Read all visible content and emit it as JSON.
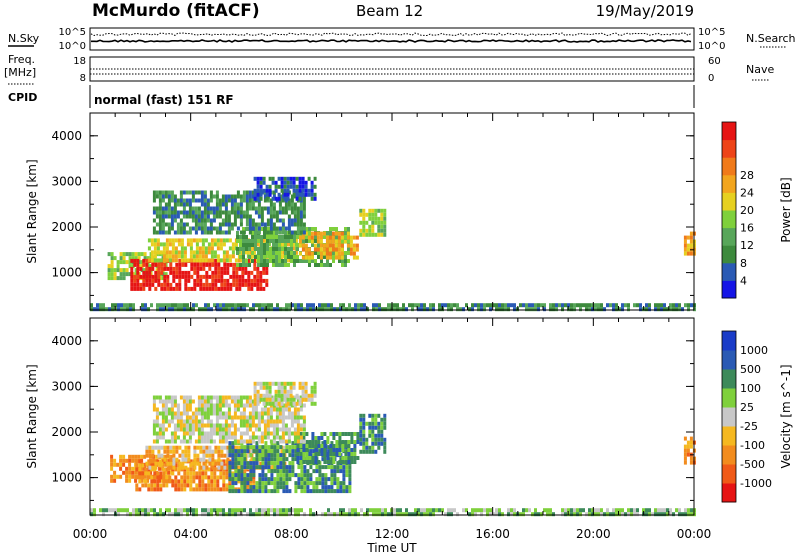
{
  "header": {
    "station": "McMurdo (fitACF)",
    "beam": "Beam 12",
    "date": "19/May/2019"
  },
  "status_panels": {
    "nsky_label": "N.Sky",
    "nsearch_label": "N.Search",
    "freq_label_1": "Freq.",
    "freq_label_2": "[MHz]",
    "nave_label": "Nave",
    "cpid_label": "CPID",
    "cpid_text": "normal (fast) 151 RF",
    "noise_ticks_left": [
      "10^5",
      "10^0"
    ],
    "noise_ticks_right": [
      "10^5",
      "10^0"
    ],
    "freq_ticks": [
      "18",
      "8"
    ],
    "nave_ticks": [
      "60",
      "0"
    ]
  },
  "chart_data": [
    {
      "type": "heatmap",
      "quantity": "power",
      "ylabel": "Slant Range [km]",
      "y_ticks": [
        "1000",
        "2000",
        "3000",
        "4000"
      ],
      "ylim": [
        180,
        4500
      ],
      "xlim": [
        0,
        24
      ],
      "colorbar_label": "Power [dB]",
      "colorbar_ticks": [
        "4",
        "8",
        "12",
        "16",
        "20",
        "24",
        "28"
      ],
      "colorbar_colors": [
        "#1515e6",
        "#2a5ab4",
        "#3d8a3d",
        "#58a65a",
        "#7fd03c",
        "#e6d020",
        "#f2a51e",
        "#f07a1a",
        "#ee4418",
        "#e61414"
      ],
      "regions": [
        {
          "x0": 0.7,
          "x1": 3.0,
          "y0": 900,
          "y1": 1450,
          "level": 4
        },
        {
          "x0": 1.6,
          "x1": 7.0,
          "y0": 600,
          "y1": 1300,
          "level": 9
        },
        {
          "x0": 2.3,
          "x1": 8.2,
          "y0": 1250,
          "y1": 1750,
          "level": 5
        },
        {
          "x0": 5.8,
          "x1": 10.3,
          "y0": 1200,
          "y1": 2000,
          "level": 3
        },
        {
          "x0": 8.3,
          "x1": 10.6,
          "y0": 1350,
          "y1": 1900,
          "level": 6
        },
        {
          "x0": 10.7,
          "x1": 11.7,
          "y0": 1800,
          "y1": 2400,
          "level": 4
        },
        {
          "x0": 2.5,
          "x1": 8.5,
          "y0": 1900,
          "y1": 2800,
          "level": 2
        },
        {
          "x0": 6.5,
          "x1": 9.0,
          "y0": 2600,
          "y1": 3100,
          "level": 1
        },
        {
          "x0": 23.6,
          "x1": 24.0,
          "y0": 1400,
          "y1": 1900,
          "level": 6
        },
        {
          "x0": 0.0,
          "x1": 24.0,
          "y0": 180,
          "y1": 330,
          "level": 2
        }
      ]
    },
    {
      "type": "heatmap",
      "quantity": "velocity",
      "ylabel": "Slant Range [km]",
      "y_ticks": [
        "1000",
        "2000",
        "3000",
        "4000"
      ],
      "ylim": [
        180,
        4500
      ],
      "xlim": [
        0,
        24
      ],
      "x_ticks": [
        "00:00",
        "04:00",
        "08:00",
        "12:00",
        "16:00",
        "20:00",
        "00:00"
      ],
      "xlabel": "Time UT",
      "colorbar_label": "Velocity [m s^-1]",
      "colorbar_ticks": [
        "-1000",
        "-500",
        "-100",
        "-25",
        "25",
        "100",
        "500",
        "1000"
      ],
      "colorbar_colors": [
        "#e61414",
        "#f05a18",
        "#f28c1e",
        "#f5b820",
        "#c8c8c8",
        "#7fd03c",
        "#3d8a5a",
        "#2a5ab4",
        "#1a3cc8"
      ],
      "regions": [
        {
          "x0": 0.8,
          "x1": 3.2,
          "y0": 900,
          "y1": 1500,
          "level": 2
        },
        {
          "x0": 1.8,
          "x1": 6.5,
          "y0": 700,
          "y1": 1400,
          "level": 2
        },
        {
          "x0": 2.2,
          "x1": 7.8,
          "y0": 1200,
          "y1": 1700,
          "level": 3
        },
        {
          "x0": 5.5,
          "x1": 10.3,
          "y0": 700,
          "y1": 1800,
          "level": 6
        },
        {
          "x0": 8.2,
          "x1": 10.6,
          "y0": 1300,
          "y1": 2000,
          "level": 6
        },
        {
          "x0": 10.7,
          "x1": 11.7,
          "y0": 1600,
          "y1": 2400,
          "level": 6
        },
        {
          "x0": 2.5,
          "x1": 8.5,
          "y0": 1800,
          "y1": 2800,
          "level": 4
        },
        {
          "x0": 6.5,
          "x1": 9.0,
          "y0": 2600,
          "y1": 3100,
          "level": 4
        },
        {
          "x0": 23.6,
          "x1": 24.0,
          "y0": 1300,
          "y1": 1900,
          "level": 2
        },
        {
          "x0": 0.0,
          "x1": 24.0,
          "y0": 180,
          "y1": 330,
          "level": 5
        }
      ]
    }
  ]
}
